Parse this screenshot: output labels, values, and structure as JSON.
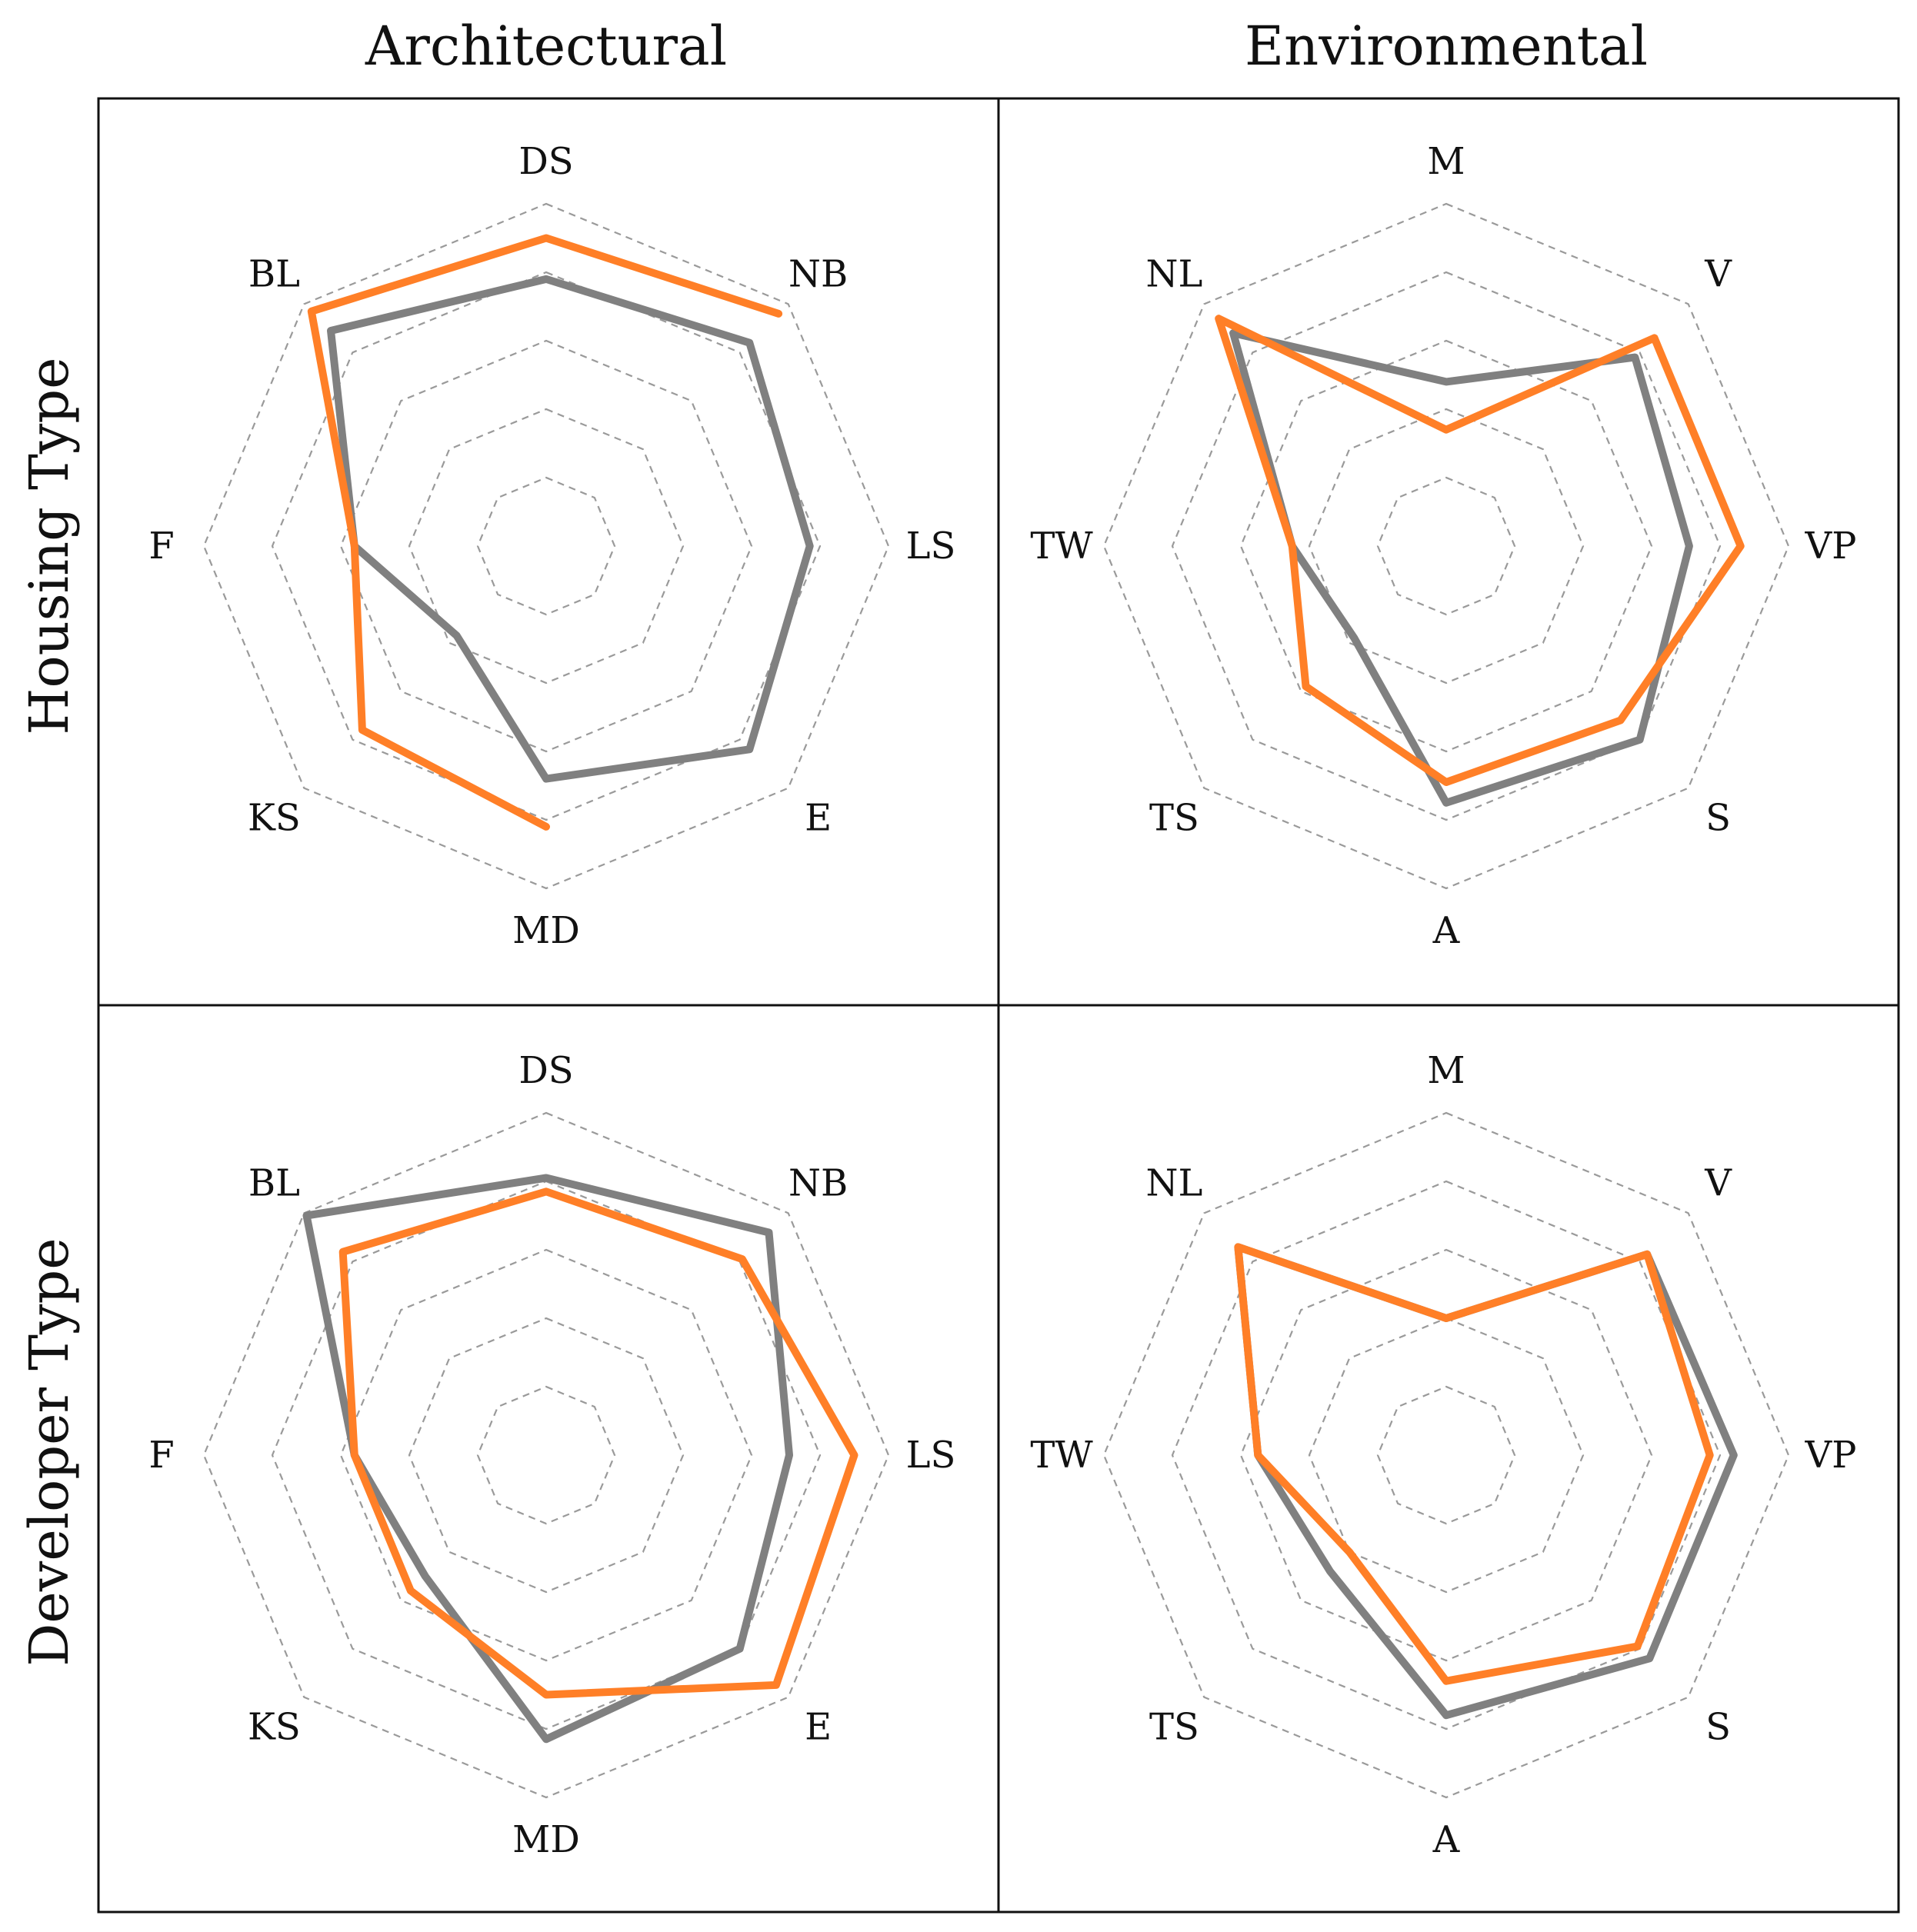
{
  "columns": [
    "Architectural",
    "Environmental"
  ],
  "rows": [
    "Housing Type",
    "Developer Type"
  ],
  "colors": {
    "series_a": "#808080",
    "series_b": "#ff7f27",
    "grid": "#9a9a9a",
    "frame": "#111111"
  },
  "chart_data": [
    {
      "type": "radar",
      "row": "Housing Type",
      "column": "Architectural",
      "axes": [
        "DS",
        "NB",
        "LS",
        "E",
        "MD",
        "KS",
        "F",
        "BL"
      ],
      "rlim": [
        0,
        5
      ],
      "grid_rings": 5,
      "series": [
        {
          "color": "#808080",
          "values": [
            3.9,
            4.2,
            3.85,
            4.2,
            3.4,
            1.85,
            2.8,
            4.45
          ],
          "closed": true
        },
        {
          "color": "#ff7f27",
          "values": [
            4.5,
            4.8,
            null,
            null,
            4.1,
            3.8,
            2.8,
            4.85
          ],
          "closed": false,
          "path_order": [
            "NB",
            "DS",
            "BL",
            "F",
            "KS",
            "MD"
          ]
        }
      ]
    },
    {
      "type": "radar",
      "row": "Housing Type",
      "column": "Environmental",
      "axes": [
        "M",
        "V",
        "VP",
        "S",
        "A",
        "TS",
        "TW",
        "NL"
      ],
      "rlim": [
        0,
        5
      ],
      "grid_rings": 5,
      "series": [
        {
          "color": "#808080",
          "values": [
            2.4,
            3.9,
            3.55,
            4.0,
            3.75,
            1.9,
            2.25,
            4.4
          ],
          "closed": true
        },
        {
          "color": "#ff7f27",
          "values": [
            1.7,
            4.3,
            4.3,
            3.6,
            3.45,
            2.9,
            2.25,
            4.7
          ],
          "closed": true
        }
      ]
    },
    {
      "type": "radar",
      "row": "Developer Type",
      "column": "Architectural",
      "axes": [
        "DS",
        "NB",
        "LS",
        "E",
        "MD",
        "KS",
        "F",
        "BL"
      ],
      "rlim": [
        0,
        5
      ],
      "grid_rings": 5,
      "series": [
        {
          "color": "#808080",
          "values": [
            4.05,
            4.6,
            3.55,
            4.0,
            4.15,
            2.5,
            2.8,
            4.95
          ],
          "closed": true
        },
        {
          "color": "#ff7f27",
          "values": [
            3.85,
            4.05,
            4.5,
            4.75,
            3.5,
            2.8,
            2.8,
            4.2
          ],
          "closed": true
        }
      ]
    },
    {
      "type": "radar",
      "row": "Developer Type",
      "column": "Environmental",
      "axes": [
        "M",
        "V",
        "VP",
        "S",
        "A",
        "TS",
        "TW",
        "NL"
      ],
      "rlim": [
        0,
        5
      ],
      "grid_rings": 5,
      "series": [
        {
          "color": "#808080",
          "values": [
            2.0,
            4.15,
            4.2,
            4.2,
            3.8,
            2.4,
            2.75,
            4.3
          ],
          "closed": true
        },
        {
          "color": "#ff7f27",
          "values": [
            2.0,
            4.15,
            3.85,
            3.95,
            3.3,
            2.0,
            2.75,
            4.3
          ],
          "closed": true
        }
      ]
    }
  ]
}
